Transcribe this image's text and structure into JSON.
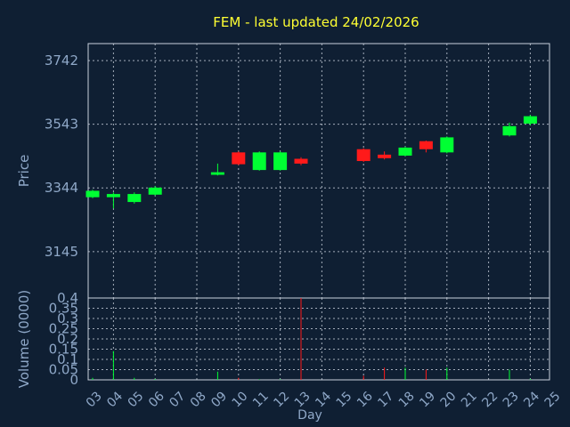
{
  "chart_data": {
    "type": "candlestick",
    "title": "FEM - last updated 24/02/2026",
    "xlabel": "Day",
    "colors": {
      "background": "#0f1f33",
      "title": "#ffff33",
      "axis_text": "#8fa8c8",
      "grid": "#c8d0dc",
      "up": "#00ff33",
      "down": "#ff1a1a"
    },
    "price_panel": {
      "ylabel": "Price",
      "ylim": [
        3000,
        3795
      ],
      "yticks": [
        3145,
        3344,
        3543,
        3742
      ],
      "grid": true
    },
    "volume_panel": {
      "ylabel": "Volume (0000)",
      "ylim": [
        0,
        0.4
      ],
      "yticks": [
        0,
        0.05,
        0.1,
        0.15,
        0.2,
        0.25,
        0.3,
        0.35,
        0.4
      ],
      "ytick_labels": [
        "0",
        "0.05",
        "0.1",
        "0.15",
        "0.2",
        "0.25",
        "0.3",
        "0.35",
        "0.4"
      ],
      "grid": true
    },
    "x_ticks": [
      "03",
      "04",
      "05",
      "06",
      "07",
      "08",
      "09",
      "10",
      "11",
      "12",
      "13",
      "14",
      "15",
      "16",
      "17",
      "18",
      "19",
      "20",
      "21",
      "22",
      "23",
      "24",
      "25"
    ],
    "candles": [
      {
        "x": 0,
        "open": 3315,
        "close": 3335,
        "high": 3338,
        "low": 3312,
        "volume": 0.01
      },
      {
        "x": 1,
        "open": 3315,
        "close": 3325,
        "high": 3330,
        "low": 3280,
        "volume": 0.14
      },
      {
        "x": 2,
        "open": 3300,
        "close": 3325,
        "high": 3330,
        "low": 3295,
        "volume": 0.01
      },
      {
        "x": 3,
        "open": 3323,
        "close": 3345,
        "high": 3350,
        "low": 3320,
        "volume": 0.005
      },
      {
        "x": 6,
        "open": 3385,
        "close": 3393,
        "high": 3420,
        "low": 3383,
        "volume": 0.04
      },
      {
        "x": 7,
        "open": 3455,
        "close": 3418,
        "high": 3458,
        "low": 3415,
        "volume": 0.01
      },
      {
        "x": 8,
        "open": 3400,
        "close": 3455,
        "high": 3458,
        "low": 3398,
        "volume": 0.003
      },
      {
        "x": 9,
        "open": 3400,
        "close": 3455,
        "high": 3458,
        "low": 3398,
        "volume": 0.003
      },
      {
        "x": 10,
        "open": 3435,
        "close": 3420,
        "high": 3440,
        "low": 3415,
        "volume": 0.4
      },
      {
        "x": 13,
        "open": 3465,
        "close": 3428,
        "high": 3468,
        "low": 3425,
        "volume": 0.02
      },
      {
        "x": 14,
        "open": 3448,
        "close": 3437,
        "high": 3458,
        "low": 3433,
        "volume": 0.06
      },
      {
        "x": 15,
        "open": 3445,
        "close": 3470,
        "high": 3473,
        "low": 3443,
        "volume": 0.06
      },
      {
        "x": 16,
        "open": 3490,
        "close": 3465,
        "high": 3492,
        "low": 3455,
        "volume": 0.05
      },
      {
        "x": 17,
        "open": 3455,
        "close": 3502,
        "high": 3505,
        "low": 3452,
        "volume": 0.06
      },
      {
        "x": 20,
        "open": 3508,
        "close": 3537,
        "high": 3548,
        "low": 3505,
        "volume": 0.05
      },
      {
        "x": 21,
        "open": 3545,
        "close": 3568,
        "high": 3572,
        "low": 3540,
        "volume": 0.005
      }
    ]
  }
}
